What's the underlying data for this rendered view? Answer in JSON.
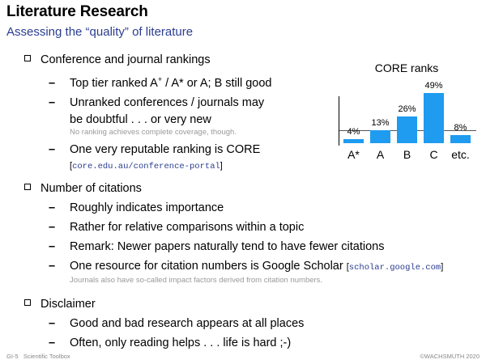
{
  "header": {
    "title": "Literature Research",
    "subtitle": "Assessing the “quality” of literature"
  },
  "sections": [
    {
      "heading": "Conference and journal rankings",
      "items": [
        {
          "text_before": "Top tier ranked A",
          "sup": "+",
          "text_after": " / A* or A; B still good"
        },
        {
          "text": "Unranked conferences / journals may"
        },
        {
          "text": "be doubtful . . .  or very new",
          "note": "No ranking achieves complete coverage, though."
        },
        {
          "text": "One very reputable ranking is CORE",
          "link": "core.edu.au/conference-portal"
        }
      ]
    },
    {
      "heading": "Number of citations",
      "items": [
        {
          "text": "Roughly indicates importance"
        },
        {
          "text": "Rather for relative comparisons within a topic"
        },
        {
          "text": "Remark: Newer papers naturally tend to have fewer citations"
        },
        {
          "text": "One resource for citation numbers is Google Scholar",
          "link": "scholar.google.com",
          "note": "Journals also have so-called impact factors derived from citation numbers."
        }
      ]
    },
    {
      "heading": "Disclaimer",
      "items": [
        {
          "text": "Good and bad research appears at all places"
        },
        {
          "text": "Often, only reading helps . . .  life is hard ;-)"
        }
      ]
    }
  ],
  "footer": {
    "left_code": "GI-5",
    "left_title": "Scientific Toolbox",
    "right": "©WACHSMUTH 2020"
  },
  "chart_data": {
    "type": "bar",
    "title": "CORE ranks",
    "categories": [
      "A*",
      "A",
      "B",
      "C",
      "etc."
    ],
    "values": [
      4,
      13,
      26,
      49,
      8
    ],
    "value_labels": [
      "4%",
      "13%",
      "26%",
      "49%",
      "8%"
    ],
    "ylim": [
      0,
      52
    ],
    "bar_color": "#1f9bf0",
    "reference_line_value": 13,
    "grid": false
  }
}
